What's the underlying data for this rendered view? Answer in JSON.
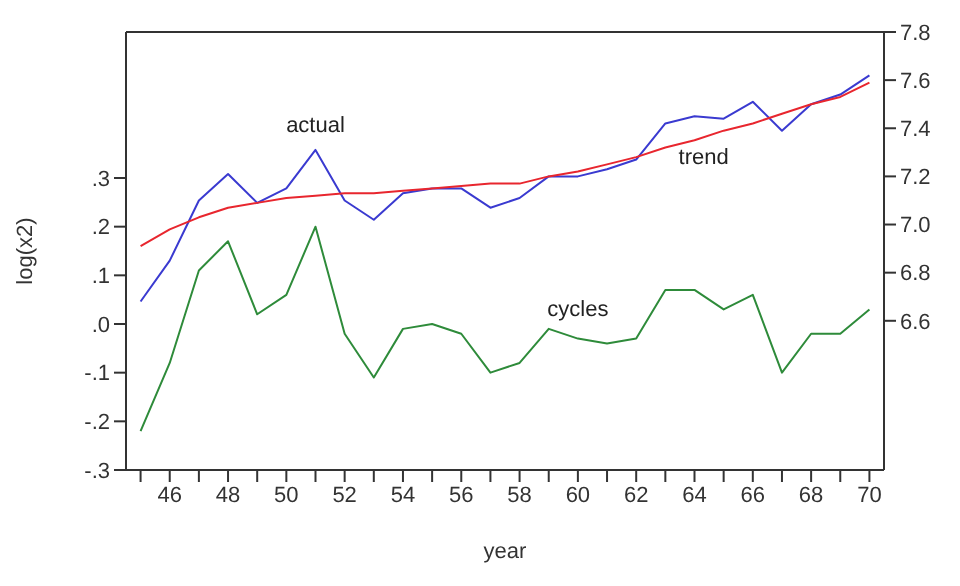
{
  "chart_data": {
    "type": "line",
    "xlabel": "year",
    "ylabel": "log(x2)",
    "x": [
      45,
      46,
      47,
      48,
      49,
      50,
      51,
      52,
      53,
      54,
      55,
      56,
      57,
      58,
      59,
      60,
      61,
      62,
      63,
      64,
      65,
      66,
      67,
      68,
      69,
      70
    ],
    "series": [
      {
        "name": "actual",
        "color": "#3a3ad0",
        "axis": "y2",
        "values": [
          6.68,
          6.85,
          7.1,
          7.21,
          7.09,
          7.15,
          7.31,
          7.1,
          7.02,
          7.13,
          7.15,
          7.15,
          7.07,
          7.11,
          7.2,
          7.2,
          7.23,
          7.27,
          7.42,
          7.45,
          7.44,
          7.51,
          7.39,
          7.5,
          7.54,
          7.62
        ]
      },
      {
        "name": "trend",
        "color": "#e8262e",
        "axis": "y2",
        "values": [
          6.91,
          6.98,
          7.03,
          7.07,
          7.09,
          7.11,
          7.12,
          7.13,
          7.13,
          7.14,
          7.15,
          7.16,
          7.17,
          7.17,
          7.2,
          7.22,
          7.25,
          7.28,
          7.32,
          7.35,
          7.39,
          7.42,
          7.46,
          7.5,
          7.53,
          7.59
        ]
      },
      {
        "name": "cycles",
        "color": "#2e8b3a",
        "values": [
          -0.22,
          -0.08,
          0.11,
          0.17,
          0.02,
          0.06,
          0.2,
          -0.02,
          -0.11,
          -0.01,
          0.0,
          -0.02,
          -0.1,
          -0.08,
          -0.01,
          -0.03,
          -0.04,
          -0.03,
          0.07,
          0.07,
          0.03,
          0.06,
          -0.1,
          -0.02,
          -0.02,
          0.03
        ]
      }
    ],
    "xlim": [
      44.5,
      70.5
    ],
    "xticks": [
      {
        "value": 45,
        "label": null
      },
      46,
      {
        "value": 47,
        "label": null
      },
      48,
      {
        "value": 49,
        "label": null
      },
      50,
      {
        "value": 51,
        "label": null
      },
      52,
      {
        "value": 53,
        "label": null
      },
      54,
      {
        "value": 55,
        "label": null
      },
      56,
      {
        "value": 57,
        "label": null
      },
      58,
      {
        "value": 59,
        "label": null
      },
      60,
      {
        "value": 61,
        "label": null
      },
      62,
      {
        "value": 63,
        "label": null
      },
      64,
      {
        "value": 65,
        "label": null
      },
      66,
      {
        "value": 67,
        "label": null
      },
      68,
      {
        "value": 69,
        "label": null
      },
      70
    ],
    "ylim": [
      -0.3,
      0.6
    ],
    "yticks": [
      {
        "value": -0.3,
        "label": "-.3"
      },
      {
        "value": -0.2,
        "label": "-.2"
      },
      {
        "value": -0.1,
        "label": "-.1"
      },
      {
        "value": 0,
        "label": ".0"
      },
      {
        "value": 0.1,
        "label": ".1"
      },
      {
        "value": 0.2,
        "label": ".2"
      },
      {
        "value": 0.3,
        "label": ".3"
      }
    ],
    "y2lim": [
      5.98,
      7.8
    ],
    "y2ticks": [
      6.6,
      6.8,
      {
        "value": 7.0,
        "label": "7.0"
      },
      7.2,
      7.4,
      7.6,
      7.8
    ],
    "grid": false,
    "marker": "none",
    "line_style": "solid"
  }
}
